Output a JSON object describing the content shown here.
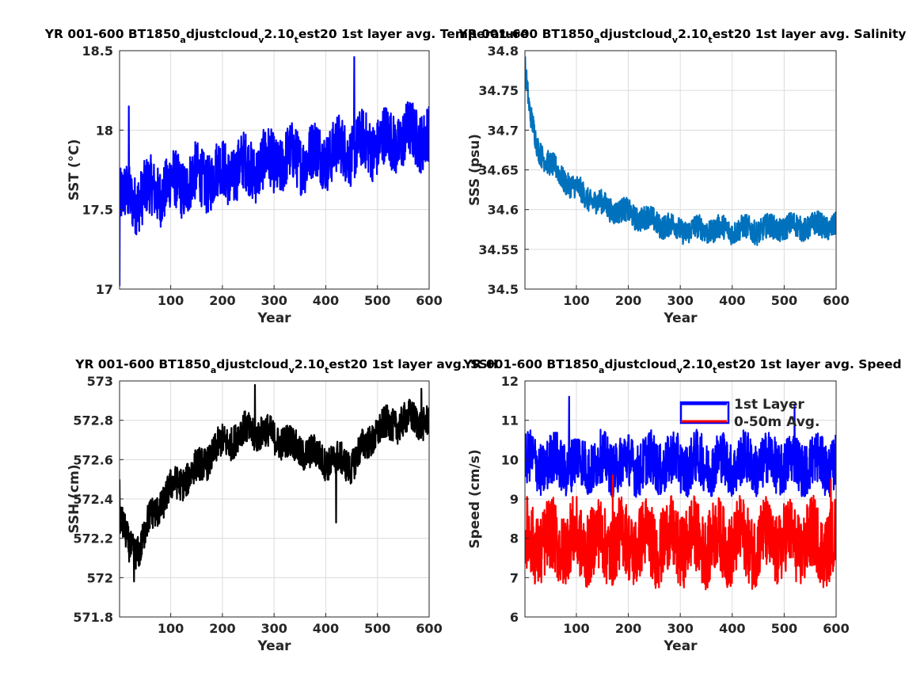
{
  "chart_data": [
    {
      "type": "line",
      "title": {
        "main": "YR 001-600 BT1850",
        "sub1": "a",
        "mid1": "djustcloud",
        "sub2": "v",
        "mid2": "2.10",
        "sub3": "t",
        "tail": "est20 1st layer avg. Temperature"
      },
      "xlabel": "Year",
      "ylabel": "SST (°C)",
      "xlim": [
        1,
        600
      ],
      "ylim": [
        17,
        18.5
      ],
      "xticks": [
        100,
        200,
        300,
        400,
        500,
        600
      ],
      "yticks": [
        17,
        17.5,
        18,
        18.5
      ],
      "ytick_labels": [
        "17",
        "17.5",
        "18",
        "18.5"
      ],
      "grid": true,
      "series": [
        {
          "color": "#0000ff",
          "trend": [
            [
              1,
              17.55
            ],
            [
              50,
              17.6
            ],
            [
              100,
              17.65
            ],
            [
              200,
              17.73
            ],
            [
              300,
              17.8
            ],
            [
              400,
              17.85
            ],
            [
              500,
              17.92
            ],
            [
              600,
              17.98
            ]
          ],
          "amplitude": 0.22,
          "spikes": [
            [
              1,
              17.02
            ],
            [
              19,
              18.15
            ],
            [
              455,
              18.46
            ]
          ]
        }
      ]
    },
    {
      "type": "line",
      "title": {
        "main": "YR 001-600 BT1850",
        "sub1": "a",
        "mid1": "djustcloud",
        "sub2": "v",
        "mid2": "2.10",
        "sub3": "t",
        "tail": "est20 1st layer avg. Salinity"
      },
      "xlabel": "Year",
      "ylabel": "SSS (psu)",
      "xlim": [
        1,
        600
      ],
      "ylim": [
        34.5,
        34.8
      ],
      "xticks": [
        100,
        200,
        300,
        400,
        500,
        600
      ],
      "yticks": [
        34.5,
        34.55,
        34.6,
        34.65,
        34.7,
        34.75,
        34.8
      ],
      "ytick_labels": [
        "34.5",
        "34.55",
        "34.6",
        "34.65",
        "34.7",
        "34.75",
        "34.8"
      ],
      "grid": true,
      "series": [
        {
          "color": "#0072bd",
          "trend": [
            [
              1,
              34.78
            ],
            [
              10,
              34.72
            ],
            [
              25,
              34.68
            ],
            [
              50,
              34.655
            ],
            [
              100,
              34.625
            ],
            [
              150,
              34.605
            ],
            [
              200,
              34.595
            ],
            [
              250,
              34.585
            ],
            [
              300,
              34.575
            ],
            [
              350,
              34.575
            ],
            [
              400,
              34.575
            ],
            [
              450,
              34.575
            ],
            [
              500,
              34.578
            ],
            [
              600,
              34.58
            ]
          ],
          "amplitude": 0.018,
          "spikes": []
        }
      ]
    },
    {
      "type": "line",
      "title": {
        "main": "YR 001-600 BT1850",
        "sub1": "a",
        "mid1": "djustcloud",
        "sub2": "v",
        "mid2": "2.10",
        "sub3": "t",
        "tail": "est20 1st layer avg. SSH"
      },
      "xlabel": "Year",
      "ylabel": "SSH (cm)",
      "xlim": [
        1,
        600
      ],
      "ylim": [
        571.8,
        573
      ],
      "xticks": [
        100,
        200,
        300,
        400,
        500,
        600
      ],
      "yticks": [
        571.8,
        572,
        572.2,
        572.4,
        572.6,
        572.8,
        573
      ],
      "ytick_labels": [
        "571.8",
        "572",
        "572.2",
        "572.4",
        "572.6",
        "572.8",
        "573"
      ],
      "grid": true,
      "series": [
        {
          "color": "#000000",
          "trend": [
            [
              1,
              572.3
            ],
            [
              20,
              572.15
            ],
            [
              40,
              572.15
            ],
            [
              60,
              572.3
            ],
            [
              100,
              572.45
            ],
            [
              150,
              572.55
            ],
            [
              200,
              572.68
            ],
            [
              250,
              572.75
            ],
            [
              300,
              572.72
            ],
            [
              350,
              572.65
            ],
            [
              400,
              572.6
            ],
            [
              450,
              572.58
            ],
            [
              500,
              572.75
            ],
            [
              550,
              572.8
            ],
            [
              600,
              572.8
            ]
          ],
          "amplitude": 0.1,
          "spikes": [
            [
              1,
              572.5
            ],
            [
              29,
              571.98
            ],
            [
              263,
              572.98
            ],
            [
              420,
              572.28
            ],
            [
              585,
              572.96
            ]
          ]
        }
      ]
    },
    {
      "type": "line",
      "title": {
        "main": "YR 001-600 BT1850",
        "sub1": "a",
        "mid1": "djustcloud",
        "sub2": "v",
        "mid2": "2.10",
        "sub3": "t",
        "tail": "est20 1st layer avg. Speed"
      },
      "xlabel": "Year",
      "ylabel": "Speed (cm/s)",
      "xlim": [
        1,
        600
      ],
      "ylim": [
        6,
        12
      ],
      "xticks": [
        100,
        200,
        300,
        400,
        500,
        600
      ],
      "yticks": [
        6,
        7,
        8,
        9,
        10,
        11,
        12
      ],
      "ytick_labels": [
        "6",
        "7",
        "8",
        "9",
        "10",
        "11",
        "12"
      ],
      "grid": true,
      "legend": "top-right",
      "series": [
        {
          "name": "1st Layer",
          "color": "#0000ff",
          "trend": [
            [
              1,
              9.9
            ],
            [
              600,
              9.9
            ]
          ],
          "amplitude": 0.8,
          "spikes": [
            [
              86,
              11.6
            ],
            [
              520,
              11.4
            ]
          ]
        },
        {
          "name": "0-50m Avg.",
          "color": "#ff0000",
          "trend": [
            [
              1,
              7.9
            ],
            [
              600,
              7.9
            ]
          ],
          "amplitude": 1.1,
          "spikes": [
            [
              170,
              9.6
            ],
            [
              590,
              9.5
            ]
          ]
        }
      ]
    }
  ]
}
